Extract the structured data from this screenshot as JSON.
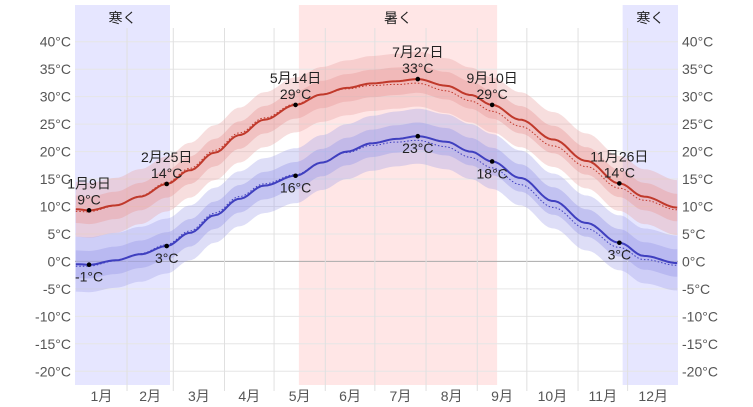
{
  "chart_data": {
    "type": "line",
    "title": "",
    "xlabel": "",
    "ylabel": "",
    "ylim": [
      -22.5,
      42.5
    ],
    "grid": true,
    "y_ticks": [
      40,
      35,
      30,
      25,
      20,
      15,
      10,
      5,
      0,
      -5,
      -10,
      -15,
      -20
    ],
    "y_tick_labels": [
      "40°C",
      "35°C",
      "30°C",
      "25°C",
      "20°C",
      "15°C",
      "10°C",
      "5°C",
      "0°C",
      "-5°C",
      "-10°C",
      "-15°C",
      "-20°C"
    ],
    "month_labels": [
      "1月",
      "2月",
      "3月",
      "4月",
      "5月",
      "6月",
      "7月",
      "8月",
      "9月",
      "10月",
      "11月",
      "12月"
    ],
    "seasons": [
      {
        "name": "寒く",
        "start_day": 1,
        "end_day": 58,
        "color": "#e6e6ff"
      },
      {
        "name": "暑く",
        "start_day": 136,
        "end_day": 256,
        "color": "#ffe6e6"
      },
      {
        "name": "寒く",
        "start_day": 332,
        "end_day": 365,
        "color": "#e6e6ff"
      }
    ],
    "series": [
      {
        "name": "high",
        "color": "#c0392b",
        "band_color": "#e8a0a0",
        "points": [
          {
            "day": 1,
            "value": 9.5
          },
          {
            "day": 9,
            "value": 9.3
          },
          {
            "day": 25,
            "value": 10.2
          },
          {
            "day": 40,
            "value": 11.8
          },
          {
            "day": 56,
            "value": 14.1
          },
          {
            "day": 70,
            "value": 16.6
          },
          {
            "day": 85,
            "value": 19.8
          },
          {
            "day": 100,
            "value": 23.0
          },
          {
            "day": 115,
            "value": 25.8
          },
          {
            "day": 134,
            "value": 28.5
          },
          {
            "day": 150,
            "value": 30.4
          },
          {
            "day": 165,
            "value": 31.6
          },
          {
            "day": 180,
            "value": 32.4
          },
          {
            "day": 195,
            "value": 32.8
          },
          {
            "day": 208,
            "value": 33.2
          },
          {
            "day": 225,
            "value": 32.0
          },
          {
            "day": 240,
            "value": 30.3
          },
          {
            "day": 253,
            "value": 28.5
          },
          {
            "day": 270,
            "value": 25.8
          },
          {
            "day": 290,
            "value": 22.2
          },
          {
            "day": 310,
            "value": 18.3
          },
          {
            "day": 330,
            "value": 14.2
          },
          {
            "day": 345,
            "value": 11.8
          },
          {
            "day": 365,
            "value": 9.8
          }
        ],
        "annotations": [
          {
            "day": 9,
            "value": 9,
            "date": "1月9日",
            "label": "9°C",
            "pos": "above"
          },
          {
            "day": 56,
            "value": 14,
            "date": "2月25日",
            "label": "14°C",
            "pos": "above"
          },
          {
            "day": 134,
            "value": 29,
            "date": "5月14日",
            "label": "29°C",
            "pos": "above"
          },
          {
            "day": 208,
            "value": 33,
            "date": "7月27日",
            "label": "33°C",
            "pos": "above"
          },
          {
            "day": 253,
            "value": 29,
            "date": "9月10日",
            "label": "29°C",
            "pos": "above"
          },
          {
            "day": 330,
            "value": 14,
            "date": "11月26日",
            "label": "14°C",
            "pos": "above"
          }
        ]
      },
      {
        "name": "low",
        "color": "#3f3fbf",
        "band_color": "#a0a0e8",
        "points": [
          {
            "day": 1,
            "value": -0.5
          },
          {
            "day": 9,
            "value": -0.6
          },
          {
            "day": 25,
            "value": 0.2
          },
          {
            "day": 40,
            "value": 1.3
          },
          {
            "day": 56,
            "value": 2.8
          },
          {
            "day": 70,
            "value": 5.2
          },
          {
            "day": 85,
            "value": 8.4
          },
          {
            "day": 100,
            "value": 11.4
          },
          {
            "day": 115,
            "value": 13.8
          },
          {
            "day": 134,
            "value": 15.6
          },
          {
            "day": 150,
            "value": 18.0
          },
          {
            "day": 165,
            "value": 20.0
          },
          {
            "day": 180,
            "value": 21.5
          },
          {
            "day": 195,
            "value": 22.3
          },
          {
            "day": 208,
            "value": 22.8
          },
          {
            "day": 225,
            "value": 21.8
          },
          {
            "day": 240,
            "value": 20.0
          },
          {
            "day": 253,
            "value": 18.2
          },
          {
            "day": 270,
            "value": 15.2
          },
          {
            "day": 290,
            "value": 11.0
          },
          {
            "day": 310,
            "value": 7.0
          },
          {
            "day": 330,
            "value": 3.4
          },
          {
            "day": 345,
            "value": 1.0
          },
          {
            "day": 365,
            "value": -0.3
          }
        ],
        "annotations": [
          {
            "day": 9,
            "value": -1,
            "date": "",
            "label": "-1°C",
            "pos": "below"
          },
          {
            "day": 56,
            "value": 3,
            "date": "",
            "label": "3°C",
            "pos": "below"
          },
          {
            "day": 134,
            "value": 16,
            "date": "",
            "label": "16°C",
            "pos": "below"
          },
          {
            "day": 208,
            "value": 23,
            "date": "",
            "label": "23°C",
            "pos": "below"
          },
          {
            "day": 253,
            "value": 18,
            "date": "",
            "label": "18°C",
            "pos": "below"
          },
          {
            "day": 330,
            "value": 3,
            "date": "",
            "label": "3°C",
            "pos": "below"
          }
        ]
      }
    ]
  }
}
